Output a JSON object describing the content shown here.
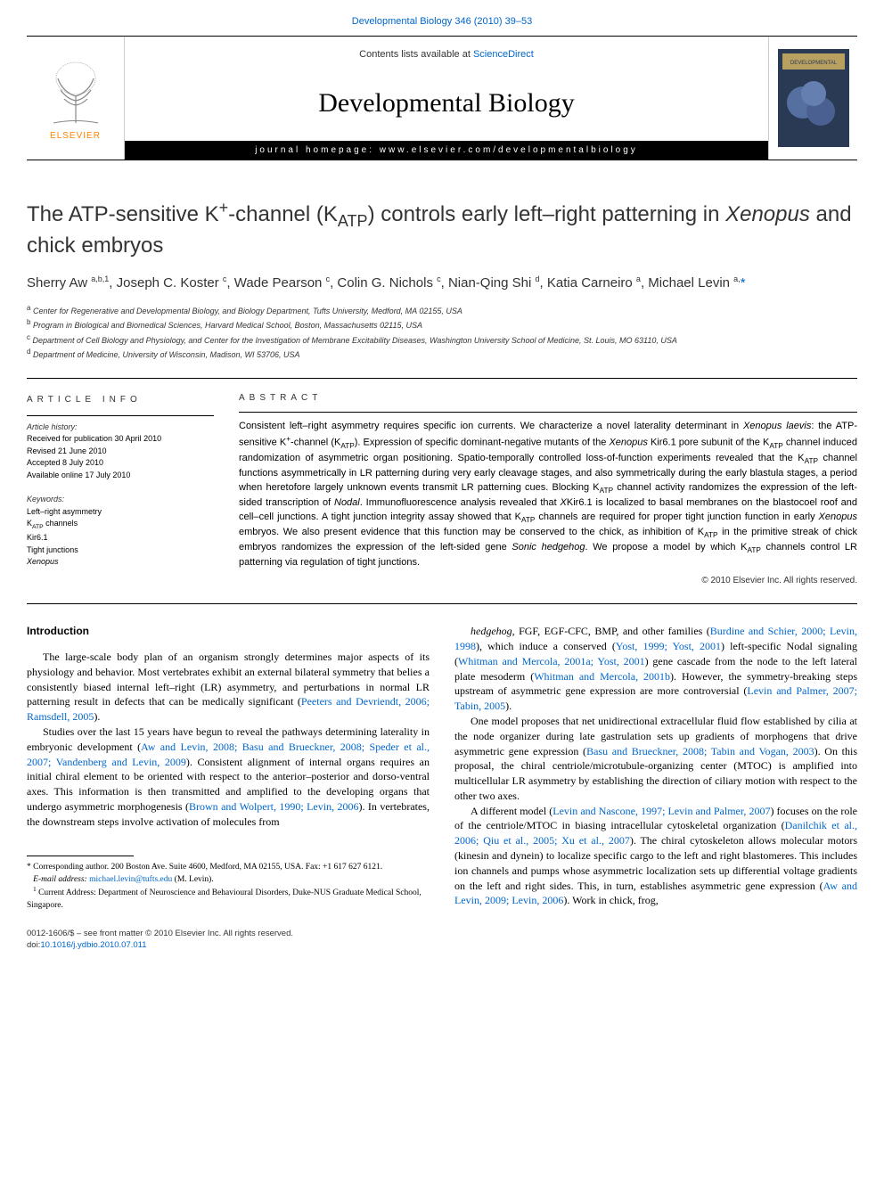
{
  "top_link": {
    "prefix": "Developmental Biology 346 (2010) 39–53",
    "url_label": "Developmental Biology 346 (2010) 39–53"
  },
  "header": {
    "contents_prefix": "Contents lists available at ",
    "contents_link": "ScienceDirect",
    "journal": "Developmental Biology",
    "homepage_label": "journal homepage: www.elsevier.com/developmentalbiology",
    "elsevier": "ELSEVIER"
  },
  "title_parts": {
    "p1": "The ATP-sensitive K",
    "sup1": "+",
    "p2": "-channel (K",
    "sub1": "ATP",
    "p3": ") controls early left–right patterning in ",
    "ital": "Xenopus",
    "p4": " and chick embryos"
  },
  "authors": [
    {
      "name": "Sherry Aw",
      "aff": "a,b,1"
    },
    {
      "name": "Joseph C. Koster",
      "aff": "c"
    },
    {
      "name": "Wade Pearson",
      "aff": "c"
    },
    {
      "name": "Colin G. Nichols",
      "aff": "c"
    },
    {
      "name": "Nian-Qing Shi",
      "aff": "d"
    },
    {
      "name": "Katia Carneiro",
      "aff": "a"
    },
    {
      "name": "Michael Levin",
      "aff": "a,",
      "star": true
    }
  ],
  "affiliations": [
    {
      "s": "a",
      "t": "Center for Regenerative and Developmental Biology, and Biology Department, Tufts University, Medford, MA 02155, USA"
    },
    {
      "s": "b",
      "t": "Program in Biological and Biomedical Sciences, Harvard Medical School, Boston, Massachusetts 02115, USA"
    },
    {
      "s": "c",
      "t": "Department of Cell Biology and Physiology, and Center for the Investigation of Membrane Excitability Diseases, Washington University School of Medicine, St. Louis, MO 63110, USA"
    },
    {
      "s": "d",
      "t": "Department of Medicine, University of Wisconsin, Madison, WI 53706, USA"
    }
  ],
  "info": {
    "heading": "article info",
    "history_label": "Article history:",
    "history": [
      "Received for publication 30 April 2010",
      "Revised 21 June 2010",
      "Accepted 8 July 2010",
      "Available online 17 July 2010"
    ],
    "keywords_label": "Keywords:",
    "keywords": [
      "Left–right asymmetry",
      "K_ATP channels",
      "Kir6.1",
      "Tight junctions",
      "Xenopus"
    ]
  },
  "abstract": {
    "heading": "abstract",
    "body_html": "Consistent left–right asymmetry requires specific ion currents. We characterize a novel laterality determinant in <em>Xenopus laevis</em>: the ATP-sensitive K<sup>+</sup>-channel (K<sub>ATP</sub>). Expression of specific dominant-negative mutants of the <em>Xenopus</em> Kir6.1 pore subunit of the K<sub>ATP</sub> channel induced randomization of asymmetric organ positioning. Spatio-temporally controlled loss-of-function experiments revealed that the K<sub>ATP</sub> channel functions asymmetrically in LR patterning during very early cleavage stages, and also symmetrically during the early blastula stages, a period when heretofore largely unknown events transmit LR patterning cues. Blocking K<sub>ATP</sub> channel activity randomizes the expression of the left-sided transcription of <em>Nodal</em>. Immunofluorescence analysis revealed that <em>X</em>Kir6.1 is localized to basal membranes on the blastocoel roof and cell–cell junctions. A tight junction integrity assay showed that K<sub>ATP</sub> channels are required for proper tight junction function in early <em>Xenopus</em> embryos. We also present evidence that this function may be conserved to the chick, as inhibition of K<sub>ATP</sub> in the primitive streak of chick embryos randomizes the expression of the left-sided gene <em>Sonic hedgehog</em>. We propose a model by which K<sub>ATP</sub> channels control LR patterning via regulation of tight junctions.",
    "copyright": "© 2010 Elsevier Inc. All rights reserved."
  },
  "body": {
    "intro_heading": "Introduction",
    "left_col": [
      "The large-scale body plan of an organism strongly determines major aspects of its physiology and behavior. Most vertebrates exhibit an external bilateral symmetry that belies a consistently biased internal left–right (LR) asymmetry, and perturbations in normal LR patterning result in defects that can be medically significant (<a class=\"ref\">Peeters and Devriendt, 2006; Ramsdell, 2005</a>).",
      "Studies over the last 15 years have begun to reveal the pathways determining laterality in embryonic development (<a class=\"ref\">Aw and Levin, 2008; Basu and Brueckner, 2008; Speder et al., 2007; Vandenberg and Levin, 2009</a>). Consistent alignment of internal organs requires an initial chiral element to be oriented with respect to the anterior–posterior and dorso-ventral axes. This information is then transmitted and amplified to the developing organs that undergo asymmetric morphogenesis (<a class=\"ref\">Brown and Wolpert, 1990; Levin, 2006</a>). In vertebrates, the downstream steps involve activation of molecules from"
    ],
    "right_col": [
      "<em>hedgehog</em>, FGF, EGF-CFC, BMP, and other families (<a class=\"ref\">Burdine and Schier, 2000; Levin, 1998</a>), which induce a conserved (<a class=\"ref\">Yost, 1999; Yost, 2001</a>) left-specific Nodal signaling (<a class=\"ref\">Whitman and Mercola, 2001a; Yost, 2001</a>) gene cascade from the node to the left lateral plate mesoderm (<a class=\"ref\">Whitman and Mercola, 2001b</a>). However, the symmetry-breaking steps upstream of asymmetric gene expression are more controversial (<a class=\"ref\">Levin and Palmer, 2007; Tabin, 2005</a>).",
      "One model proposes that net unidirectional extracellular fluid flow established by cilia at the node organizer during late gastrulation sets up gradients of morphogens that drive asymmetric gene expression (<a class=\"ref\">Basu and Brueckner, 2008; Tabin and Vogan, 2003</a>). On this proposal, the chiral centriole/microtubule-organizing center (MTOC) is amplified into multicellular LR asymmetry by establishing the direction of ciliary motion with respect to the other two axes.",
      "A different model (<a class=\"ref\">Levin and Nascone, 1997; Levin and Palmer, 2007</a>) focuses on the role of the centriole/MTOC in biasing intracellular cytoskeletal organization (<a class=\"ref\">Danilchik et al., 2006; Qiu et al., 2005; Xu et al., 2007</a>). The chiral cytoskeleton allows molecular motors (kinesin and dynein) to localize specific cargo to the left and right blastomeres. This includes ion channels and pumps whose asymmetric localization sets up differential voltage gradients on the left and right sides. This, in turn, establishes asymmetric gene expression (<a class=\"ref\">Aw and Levin, 2009; Levin, 2006</a>). Work in chick, frog,"
    ]
  },
  "footnotes": {
    "corr": "Corresponding author. 200 Boston Ave. Suite 4600, Medford, MA 02155, USA. Fax: +1 617 627 6121.",
    "email_label": "E-mail address:",
    "email": "michael.levin@tufts.edu",
    "email_name": "(M. Levin).",
    "cur": "Current Address: Department of Neuroscience and Behavioural Disorders, Duke-NUS Graduate Medical School, Singapore."
  },
  "footer": {
    "line": "0012-1606/$ – see front matter © 2010 Elsevier Inc. All rights reserved.",
    "doi_label": "doi:",
    "doi": "10.1016/j.ydbio.2010.07.011"
  },
  "colors": {
    "link": "#0066cc",
    "text": "#000000",
    "header_black": "#000000",
    "elsevier_orange": "#ff8400"
  }
}
